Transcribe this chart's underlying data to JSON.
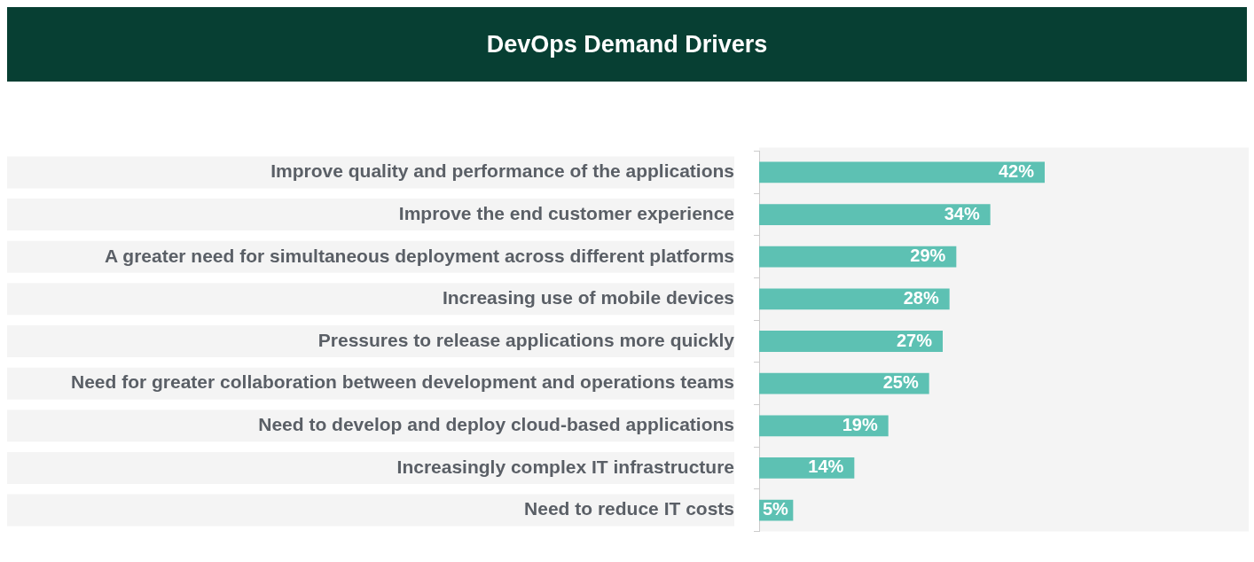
{
  "chart_data": {
    "type": "bar",
    "orientation": "horizontal",
    "title": "DevOps Demand Drivers",
    "categories": [
      "Improve quality and performance of the applications",
      "Improve the end customer experience",
      "A greater need for simultaneous deployment across different platforms",
      "Increasing use of mobile devices",
      "Pressures to release applications more quickly",
      "Need for greater collaboration between development and operations teams",
      "Need to develop and deploy cloud-based applications",
      "Increasingly complex IT infrastructure",
      "Need to reduce IT costs"
    ],
    "values": [
      42,
      34,
      29,
      28,
      27,
      25,
      19,
      14,
      5
    ],
    "value_labels": [
      "42%",
      "34%",
      "29%",
      "28%",
      "27%",
      "25%",
      "19%",
      "14%",
      "5%"
    ],
    "color": "#5dc1b3",
    "xlim": [
      0,
      72
    ],
    "tick_labels": "y",
    "grid": false,
    "legend": false
  }
}
